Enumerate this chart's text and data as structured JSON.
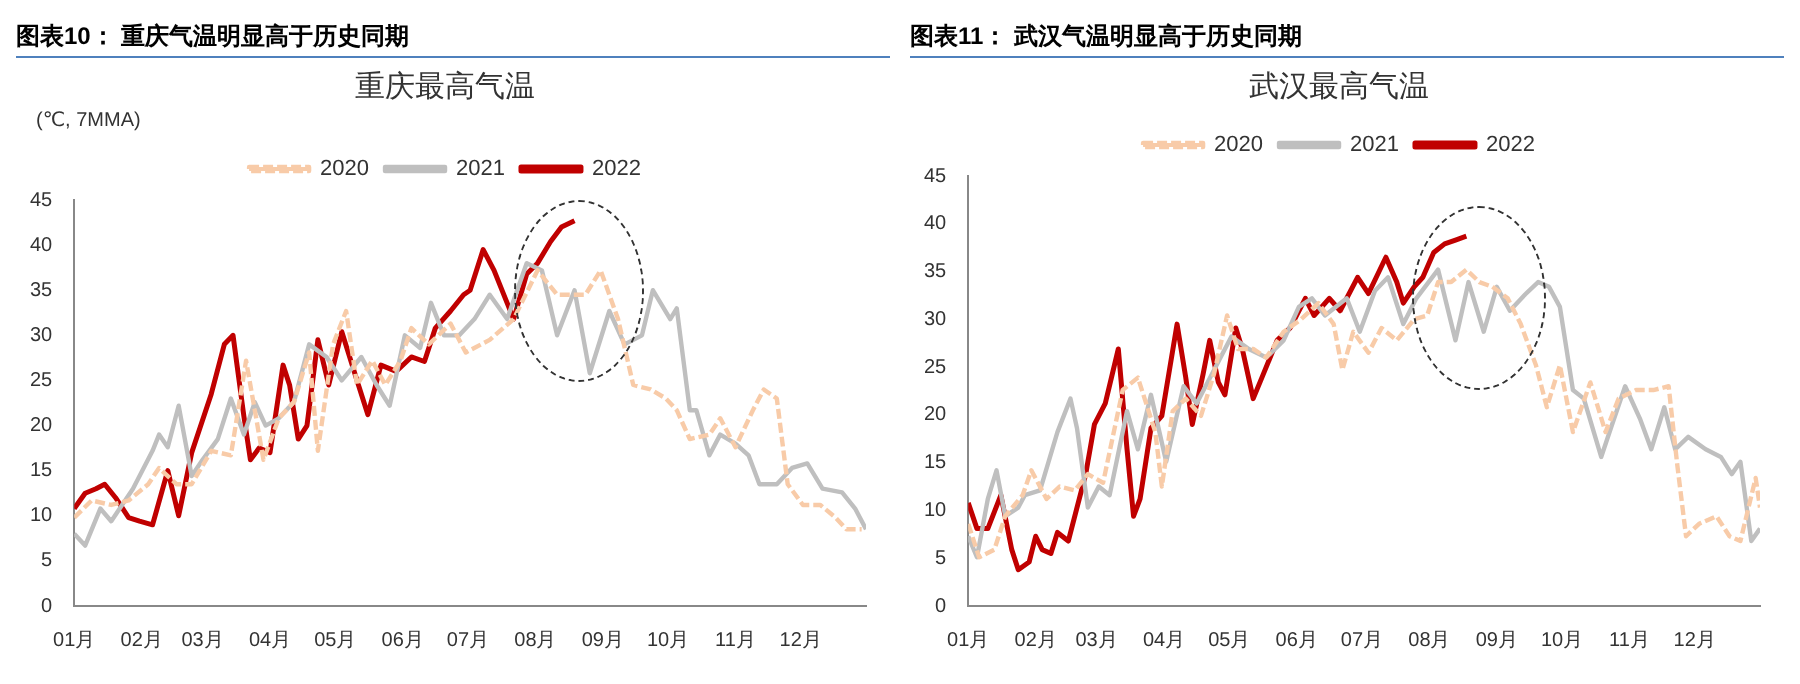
{
  "chart_data": [
    {
      "type": "line",
      "title": "图表10： 重庆气温明显高于历史同期",
      "subtitle": "重庆最高气温",
      "ylabel": "(℃, 7MMA)",
      "legend": "top",
      "grid": false,
      "marker": "none",
      "xlim": [
        "--01-01",
        "--12-31"
      ],
      "xticks": [
        {
          "value": "--01-01",
          "label": "01月"
        },
        {
          "value": "--02-01",
          "label": "02月"
        },
        {
          "value": "--03-01",
          "label": "03月"
        },
        {
          "value": "--04-01",
          "label": "04月"
        },
        {
          "value": "--05-01",
          "label": "05月"
        },
        {
          "value": "--06-01",
          "label": "06月"
        },
        {
          "value": "--07-01",
          "label": "07月"
        },
        {
          "value": "--08-01",
          "label": "08月"
        },
        {
          "value": "--09-01",
          "label": "09月"
        },
        {
          "value": "--10-01",
          "label": "10月"
        },
        {
          "value": "--11-01",
          "label": "11月"
        },
        {
          "value": "--12-01",
          "label": "12月"
        }
      ],
      "ylim": [
        0,
        45
      ],
      "yticks": [
        0,
        5,
        10,
        15,
        20,
        25,
        30,
        35,
        40,
        45
      ],
      "series": [
        {
          "name": "2020",
          "color": "#f8cba8",
          "line_style": "dashed",
          "x": [
            "--01-01",
            "--01-09",
            "--01-18",
            "--01-26",
            "--02-04",
            "--02-09",
            "--02-17",
            "--02-24",
            "--03-05",
            "--03-14",
            "--03-21",
            "--03-29",
            "--04-05",
            "--04-12",
            "--04-19",
            "--04-23",
            "--04-30",
            "--05-06",
            "--05-11",
            "--05-18",
            "--05-24",
            "--05-31",
            "--06-05",
            "--06-13",
            "--06-23",
            "--06-30",
            "--07-11",
            "--07-22",
            "--08-02",
            "--08-11",
            "--08-17",
            "--08-24",
            "--08-31",
            "--09-08",
            "--09-15",
            "--09-23",
            "--09-30",
            "--10-05",
            "--10-11",
            "--10-20",
            "--10-25",
            "--11-01",
            "--11-09",
            "--11-14",
            "--11-20",
            "--11-25",
            "--12-02",
            "--12-10",
            "--12-17",
            "--12-22",
            "--12-29"
          ],
          "values": [
            9.8,
            11.7,
            11.2,
            11.7,
            13.5,
            15.3,
            13.5,
            13.5,
            17.2,
            16.7,
            27.2,
            16.2,
            20.8,
            22.6,
            28.1,
            17.2,
            29,
            32.7,
            24.5,
            27.2,
            24.5,
            27.2,
            30.8,
            29,
            31.3,
            28.1,
            29.5,
            31.8,
            37.2,
            34.5,
            34.5,
            34.5,
            37.2,
            31.8,
            24.5,
            24,
            23,
            21.7,
            18.5,
            19,
            20.8,
            17.6,
            21.7,
            24,
            23,
            13.5,
            11.2,
            11.2,
            9.8,
            8.5,
            8.5
          ]
        },
        {
          "name": "2021",
          "color": "#bfbfbf",
          "line_style": "solid",
          "x": [
            "--01-01",
            "--01-06",
            "--01-13",
            "--01-18",
            "--01-28",
            "--02-06",
            "--02-09",
            "--02-13",
            "--02-18",
            "--02-24",
            "--03-01",
            "--03-08",
            "--03-14",
            "--03-20",
            "--03-25",
            "--03-30",
            "--04-05",
            "--04-12",
            "--04-19",
            "--04-27",
            "--05-04",
            "--05-13",
            "--05-20",
            "--05-26",
            "--06-02",
            "--06-09",
            "--06-14",
            "--06-20",
            "--06-27",
            "--07-04",
            "--07-11",
            "--07-19",
            "--07-28",
            "--08-04",
            "--08-11",
            "--08-19",
            "--08-26",
            "--09-04",
            "--09-11",
            "--09-19",
            "--09-24",
            "--10-02",
            "--10-05",
            "--10-11",
            "--10-14",
            "--10-20",
            "--10-25",
            "--11-01",
            "--11-07",
            "--11-12",
            "--11-20",
            "--11-27",
            "--12-04",
            "--12-11",
            "--12-20",
            "--12-26",
            "--12-31"
          ],
          "values": [
            8,
            6.7,
            10.8,
            9.4,
            13,
            17.2,
            19,
            17.6,
            22.2,
            14.4,
            16.2,
            18.5,
            23,
            19,
            22.6,
            20,
            20.8,
            22.6,
            29,
            27.6,
            25,
            27.6,
            24.5,
            22.2,
            30,
            28.6,
            33.6,
            30,
            30,
            31.8,
            34.5,
            31.8,
            38,
            37.2,
            30,
            35,
            25.8,
            32.7,
            29,
            30,
            35,
            31.8,
            33,
            21.7,
            21.7,
            16.7,
            19,
            18,
            16.7,
            13.5,
            13.5,
            15.3,
            15.8,
            13,
            12.6,
            10.8,
            8.5
          ]
        },
        {
          "name": "2022",
          "color": "#c00000",
          "line_style": "solid",
          "x": [
            "--01-01",
            "--01-06",
            "--01-11",
            "--01-15",
            "--01-20",
            "--01-26",
            "--01-31",
            "--02-06",
            "--02-13",
            "--02-18",
            "--02-24",
            "--03-05",
            "--03-11",
            "--03-15",
            "--03-20",
            "--03-23",
            "--03-27",
            "--04-01",
            "--04-07",
            "--04-10",
            "--04-14",
            "--04-18",
            "--04-23",
            "--04-28",
            "--05-04",
            "--05-11",
            "--05-16",
            "--05-22",
            "--05-29",
            "--06-05",
            "--06-11",
            "--06-16",
            "--06-23",
            "--06-29",
            "--07-02",
            "--07-08",
            "--07-13",
            "--07-19",
            "--07-22",
            "--07-28",
            "--08-02",
            "--08-08",
            "--08-13",
            "--08-19"
          ],
          "values": [
            10.8,
            12.5,
            13,
            13.5,
            12,
            9.8,
            9.4,
            9,
            15,
            10,
            17,
            23.5,
            29,
            30,
            21,
            16.2,
            17.5,
            17,
            26.7,
            24.5,
            18.5,
            20,
            29.5,
            24.5,
            30.4,
            25,
            21.2,
            26.7,
            26,
            27.6,
            27.1,
            30.8,
            32.7,
            34.5,
            35,
            39.5,
            37.2,
            33.6,
            31.8,
            36.8,
            38,
            40.4,
            42,
            42.7
          ]
        }
      ]
    },
    {
      "type": "line",
      "title": "图表11： 武汉气温明显高于历史同期",
      "subtitle": "武汉最高气温",
      "legend": "top",
      "grid": false,
      "marker": "none",
      "xlim": [
        "--01-01",
        "--12-31"
      ],
      "xticks": [
        {
          "value": "--01-01",
          "label": "01月"
        },
        {
          "value": "--02-01",
          "label": "02月"
        },
        {
          "value": "--03-01",
          "label": "03月"
        },
        {
          "value": "--04-01",
          "label": "04月"
        },
        {
          "value": "--05-01",
          "label": "05月"
        },
        {
          "value": "--06-01",
          "label": "06月"
        },
        {
          "value": "--07-01",
          "label": "07月"
        },
        {
          "value": "--08-01",
          "label": "08月"
        },
        {
          "value": "--09-01",
          "label": "09月"
        },
        {
          "value": "--10-01",
          "label": "10月"
        },
        {
          "value": "--11-01",
          "label": "11月"
        },
        {
          "value": "--12-01",
          "label": "12月"
        }
      ],
      "ylim": [
        0,
        45
      ],
      "yticks": [
        0,
        5,
        10,
        15,
        20,
        25,
        30,
        35,
        40,
        45
      ],
      "series": [
        {
          "name": "2020",
          "color": "#f8cba8",
          "line_style": "dashed",
          "x": [
            "--01-01",
            "--01-06",
            "--01-13",
            "--01-18",
            "--01-26",
            "--01-30",
            "--02-06",
            "--02-12",
            "--02-19",
            "--02-25",
            "--03-04",
            "--03-13",
            "--03-20",
            "--03-28",
            "--03-31",
            "--04-05",
            "--04-11",
            "--04-18",
            "--04-24",
            "--04-30",
            "--05-05",
            "--05-12",
            "--05-18",
            "--05-26",
            "--06-03",
            "--06-11",
            "--06-18",
            "--06-22",
            "--06-27",
            "--07-04",
            "--07-10",
            "--07-17",
            "--07-25",
            "--07-31",
            "--08-05",
            "--08-11",
            "--08-18",
            "--08-24",
            "--08-30",
            "--09-06",
            "--09-12",
            "--09-19",
            "--09-24",
            "--09-30",
            "--10-06",
            "--10-14",
            "--10-21",
            "--10-27",
            "--11-04",
            "--11-12",
            "--11-19",
            "--11-23",
            "--11-27",
            "--12-03",
            "--12-11",
            "--12-17",
            "--12-22",
            "--12-29",
            "--12-31"
          ],
          "values": [
            8.6,
            5.1,
            5.9,
            9.4,
            11.6,
            14.2,
            11.2,
            12.5,
            12.1,
            13.8,
            12.9,
            22.6,
            23.9,
            18.2,
            12.5,
            20.4,
            21.7,
            19.9,
            24.3,
            30.4,
            26.9,
            26.9,
            26,
            28.7,
            30,
            31.7,
            29.5,
            24.7,
            28.7,
            26.5,
            29.1,
            27.8,
            30,
            30.4,
            33.9,
            33.9,
            35.2,
            33.9,
            33.4,
            32.2,
            29.5,
            25.2,
            20.8,
            25.2,
            18.2,
            23.4,
            18.2,
            21.7,
            22.6,
            22.6,
            23,
            14.7,
            7.3,
            8.6,
            9.4,
            7.3,
            6.8,
            13.4,
            10.3
          ]
        },
        {
          "name": "2021",
          "color": "#bfbfbf",
          "line_style": "solid",
          "x": [
            "--01-01",
            "--01-05",
            "--01-10",
            "--01-14",
            "--01-18",
            "--01-24",
            "--01-27",
            "--02-03",
            "--02-11",
            "--02-17",
            "--02-20",
            "--02-25",
            "--03-02",
            "--03-07",
            "--03-15",
            "--03-20",
            "--03-26",
            "--04-02",
            "--04-10",
            "--04-16",
            "--04-24",
            "--05-02",
            "--05-10",
            "--05-18",
            "--05-26",
            "--06-02",
            "--06-08",
            "--06-14",
            "--06-24",
            "--06-30",
            "--07-07",
            "--07-13",
            "--07-20",
            "--07-26",
            "--08-05",
            "--08-13",
            "--08-19",
            "--08-26",
            "--09-01",
            "--09-07",
            "--09-14",
            "--09-20",
            "--09-25",
            "--09-30",
            "--10-06",
            "--10-11",
            "--10-19",
            "--10-24",
            "--10-30",
            "--11-06",
            "--11-11",
            "--11-17",
            "--11-22",
            "--11-28",
            "--12-06",
            "--12-13",
            "--12-18",
            "--12-22",
            "--12-27",
            "--12-31"
          ],
          "values": [
            7.3,
            5.1,
            11.2,
            14.2,
            9.4,
            10.3,
            11.6,
            12.1,
            18.2,
            21.7,
            18.6,
            10.3,
            12.5,
            11.6,
            20.4,
            16.4,
            22.1,
            15.1,
            23,
            21.2,
            24.7,
            28.2,
            26.9,
            26,
            27.8,
            31.3,
            32.2,
            30.4,
            32.2,
            28.7,
            33,
            34.4,
            29.5,
            32.2,
            35.2,
            27.8,
            33.9,
            28.7,
            33.4,
            30.9,
            32.6,
            33.9,
            33.4,
            31.3,
            22.6,
            21.7,
            15.6,
            19,
            23,
            19.5,
            16.4,
            20.8,
            16.4,
            17.7,
            16.4,
            15.6,
            13.8,
            15.1,
            6.8,
            8.1
          ]
        },
        {
          "name": "2022",
          "color": "#c00000",
          "line_style": "solid",
          "x": [
            "--01-01",
            "--01-05",
            "--01-10",
            "--01-16",
            "--01-21",
            "--01-24",
            "--01-29",
            "--02-01",
            "--02-04",
            "--02-08",
            "--02-11",
            "--02-16",
            "--02-24",
            "--02-28",
            "--03-05",
            "--03-11",
            "--03-15",
            "--03-18",
            "--03-21",
            "--03-26",
            "--03-31",
            "--04-07",
            "--04-11",
            "--04-14",
            "--04-19",
            "--04-22",
            "--04-26",
            "--04-29",
            "--05-04",
            "--05-07",
            "--05-12",
            "--05-16",
            "--05-23",
            "--05-29",
            "--06-05",
            "--06-09",
            "--06-16",
            "--06-21",
            "--06-29",
            "--07-04",
            "--07-12",
            "--07-17",
            "--07-20",
            "--07-25",
            "--07-29",
            "--08-03",
            "--08-08",
            "--08-13",
            "--08-18"
          ],
          "values": [
            10.8,
            8.1,
            8.1,
            11.6,
            5.9,
            3.8,
            4.6,
            7.3,
            5.9,
            5.5,
            7.7,
            6.8,
            13.8,
            19,
            21.2,
            26.9,
            16.4,
            9.4,
            11.2,
            18.6,
            19.9,
            29.5,
            23.9,
            19,
            24.3,
            27.8,
            23.4,
            22.1,
            29.1,
            26.9,
            21.7,
            23.9,
            27.8,
            29.1,
            32.2,
            30.4,
            32.2,
            30.9,
            34.4,
            32.7,
            36.5,
            33.9,
            31.7,
            33.4,
            34.4,
            37,
            37.9,
            38.3,
            38.7
          ]
        }
      ]
    }
  ]
}
